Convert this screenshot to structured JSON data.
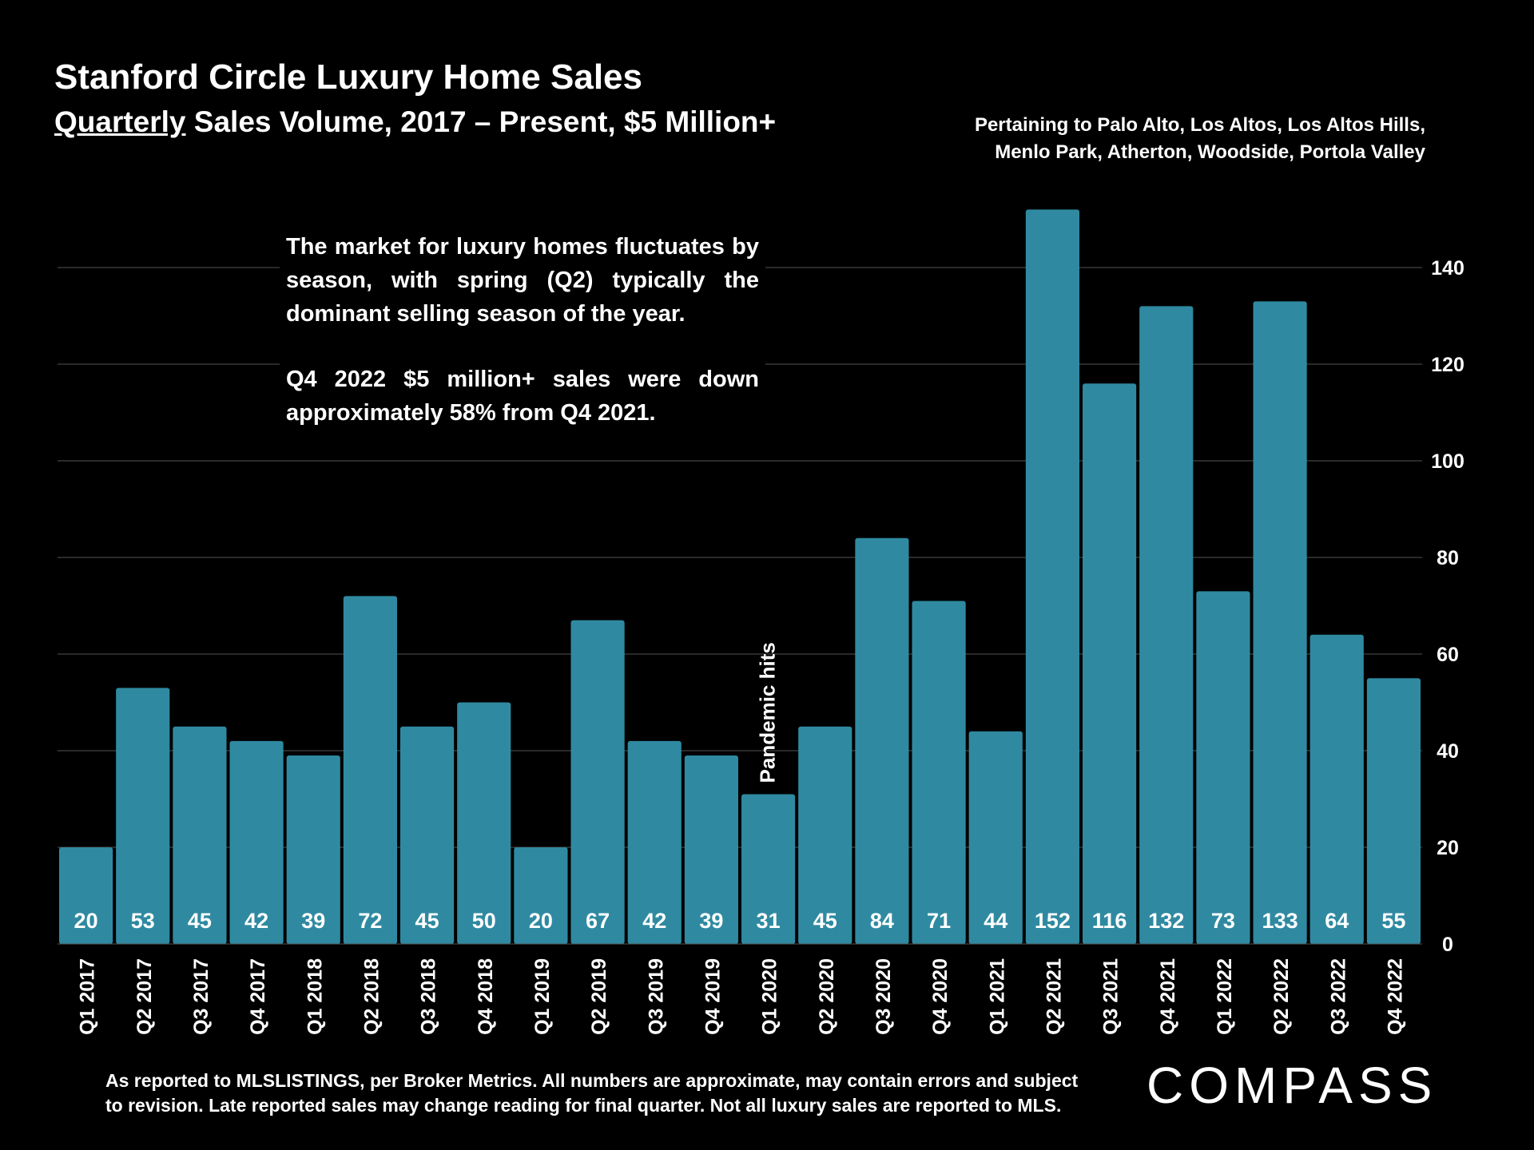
{
  "header": {
    "title": "Stanford Circle Luxury Home Sales",
    "subtitle_underlined": "Quarterly",
    "subtitle_rest": " Sales Volume, 2017 – Present, $5 Million+",
    "pertaining_line1": "Pertaining to Palo Alto, Los Altos, Los Altos Hills,",
    "pertaining_line2": "Menlo Park, Atherton, Woodside, Portola Valley"
  },
  "note": {
    "para1": "The market for luxury homes fluctuates by season, with spring (Q2) typically the dominant selling season of the year.",
    "para2": "Q4 2022 $5 million+ sales were down approximately 58% from Q4 2021."
  },
  "footer": {
    "line1": "As reported to MLSLISTINGS, per Broker Metrics. All numbers are approximate, may contain errors and subject",
    "line2": "to revision. Late reported sales may change reading for final quarter. Not all luxury sales are reported to MLS.",
    "logo": "COMPASS"
  },
  "colors": {
    "bar": "#2f8aa1",
    "grid": "#555555",
    "background": "#000000",
    "text": "#ffffff"
  },
  "chart_data": {
    "type": "bar",
    "categories": [
      "Q1 2017",
      "Q2 2017",
      "Q3 2017",
      "Q4 2017",
      "Q1 2018",
      "Q2 2018",
      "Q3 2018",
      "Q4 2018",
      "Q1 2019",
      "Q2 2019",
      "Q3 2019",
      "Q4 2019",
      "Q1 2020",
      "Q2 2020",
      "Q3 2020",
      "Q4 2020",
      "Q1 2021",
      "Q2 2021",
      "Q3 2021",
      "Q4 2021",
      "Q1 2022",
      "Q2 2022",
      "Q3 2022",
      "Q4 2022"
    ],
    "values": [
      20,
      53,
      45,
      42,
      39,
      72,
      45,
      50,
      20,
      67,
      42,
      39,
      31,
      45,
      84,
      71,
      44,
      152,
      116,
      132,
      73,
      133,
      64,
      55
    ],
    "ylim": [
      0,
      155
    ],
    "yticks": [
      0,
      20,
      40,
      60,
      80,
      100,
      120,
      140
    ],
    "y_axis_side": "right",
    "annotation": {
      "text": "Pandemic hits",
      "category": "Q1 2020"
    }
  }
}
